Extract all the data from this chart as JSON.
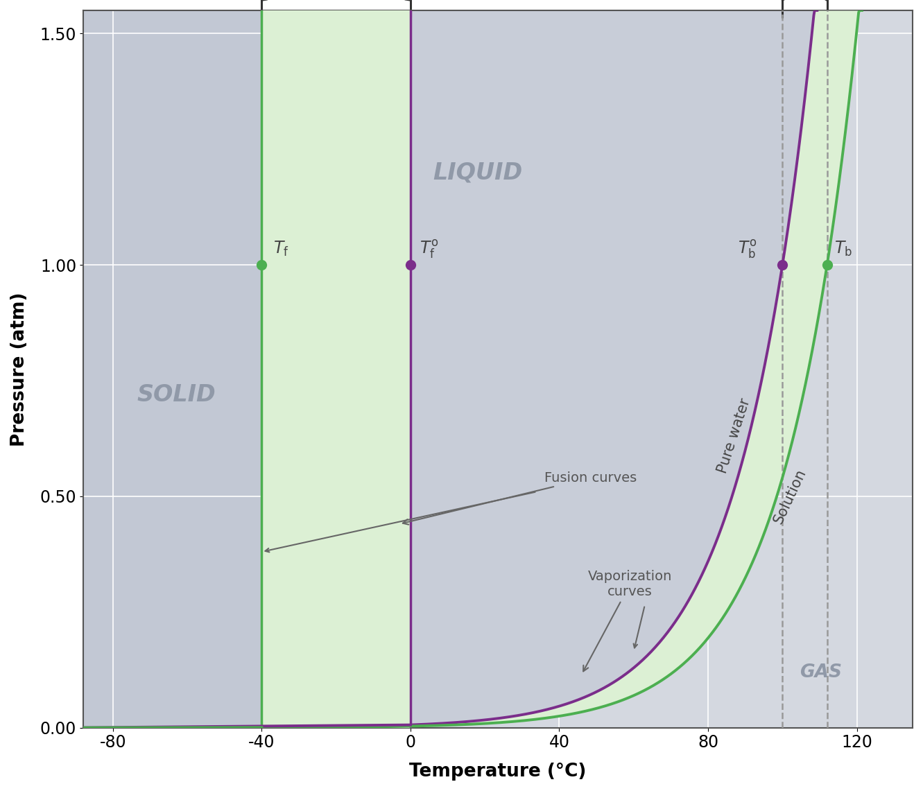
{
  "xlim": [
    -88,
    135
  ],
  "ylim": [
    0.0,
    1.55
  ],
  "xticks": [
    -80,
    -40,
    0,
    40,
    80,
    120
  ],
  "yticks": [
    0.0,
    0.5,
    1.0,
    1.5
  ],
  "xlabel": "Temperature (°C)",
  "ylabel": "Pressure (atm)",
  "color_pure_water": "#7B2D8B",
  "color_solution": "#4CAF50",
  "color_solid_bg": "#C2C8D4",
  "color_liquid_bg": "#C8CDD8",
  "color_gas_bg": "#D4D8E0",
  "color_green_shade": "#DCF0D4",
  "color_grid": "#FFFFFF",
  "Tf_solution": -40,
  "Tf_pure": 0,
  "Tb_pure": 100,
  "Tb_solution": 112,
  "A1": 0.006,
  "B1_T0": 100.0,
  "A2": 0.0032,
  "B2_T0": 112.0
}
